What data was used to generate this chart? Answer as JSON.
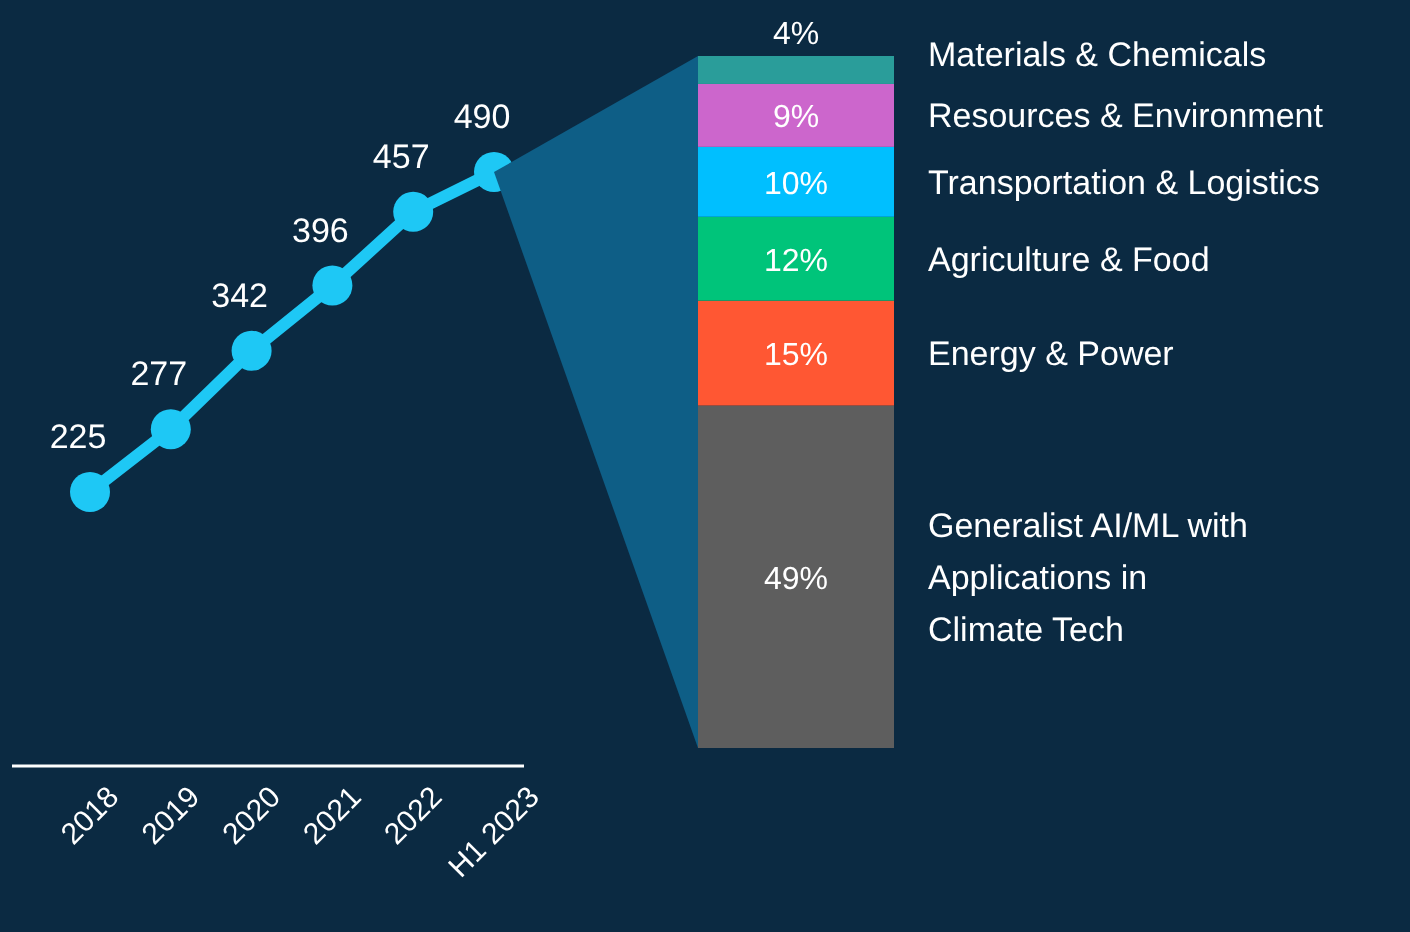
{
  "chart_data": [
    {
      "type": "line",
      "categories": [
        "2018",
        "2019",
        "2020",
        "2021",
        "2022",
        "H1 2023"
      ],
      "series": [
        {
          "color": "#1ec8f5",
          "values": [
            225,
            277,
            342,
            396,
            457,
            490
          ]
        }
      ],
      "data_labels": true,
      "marker": "circle",
      "line_style": "solid"
    },
    {
      "type": "bar",
      "stacked": true,
      "categories": [
        null
      ],
      "legend": "right",
      "series": [
        {
          "name": "Generalist AI/ML with Applications in Climate Tech",
          "color": "#5e5e5e",
          "values": [
            49
          ],
          "value_labels": [
            "49%"
          ]
        },
        {
          "name": "Energy & Power",
          "color": "#ff5733",
          "values": [
            15
          ],
          "value_labels": [
            "15%"
          ]
        },
        {
          "name": "Agriculture & Food",
          "color": "#00c47a",
          "values": [
            12
          ],
          "value_labels": [
            "12%"
          ]
        },
        {
          "name": "Transportation & Logistics",
          "color": "#00bfff",
          "values": [
            10
          ],
          "value_labels": [
            "10%"
          ]
        },
        {
          "name": "Resources & Environment",
          "color": "#cc66cc",
          "values": [
            9
          ],
          "value_labels": [
            "9%"
          ]
        },
        {
          "name": "Materials & Chemicals",
          "color": "#2a9d9a",
          "values": [
            4
          ],
          "value_labels": [
            "4%"
          ]
        }
      ]
    }
  ]
}
